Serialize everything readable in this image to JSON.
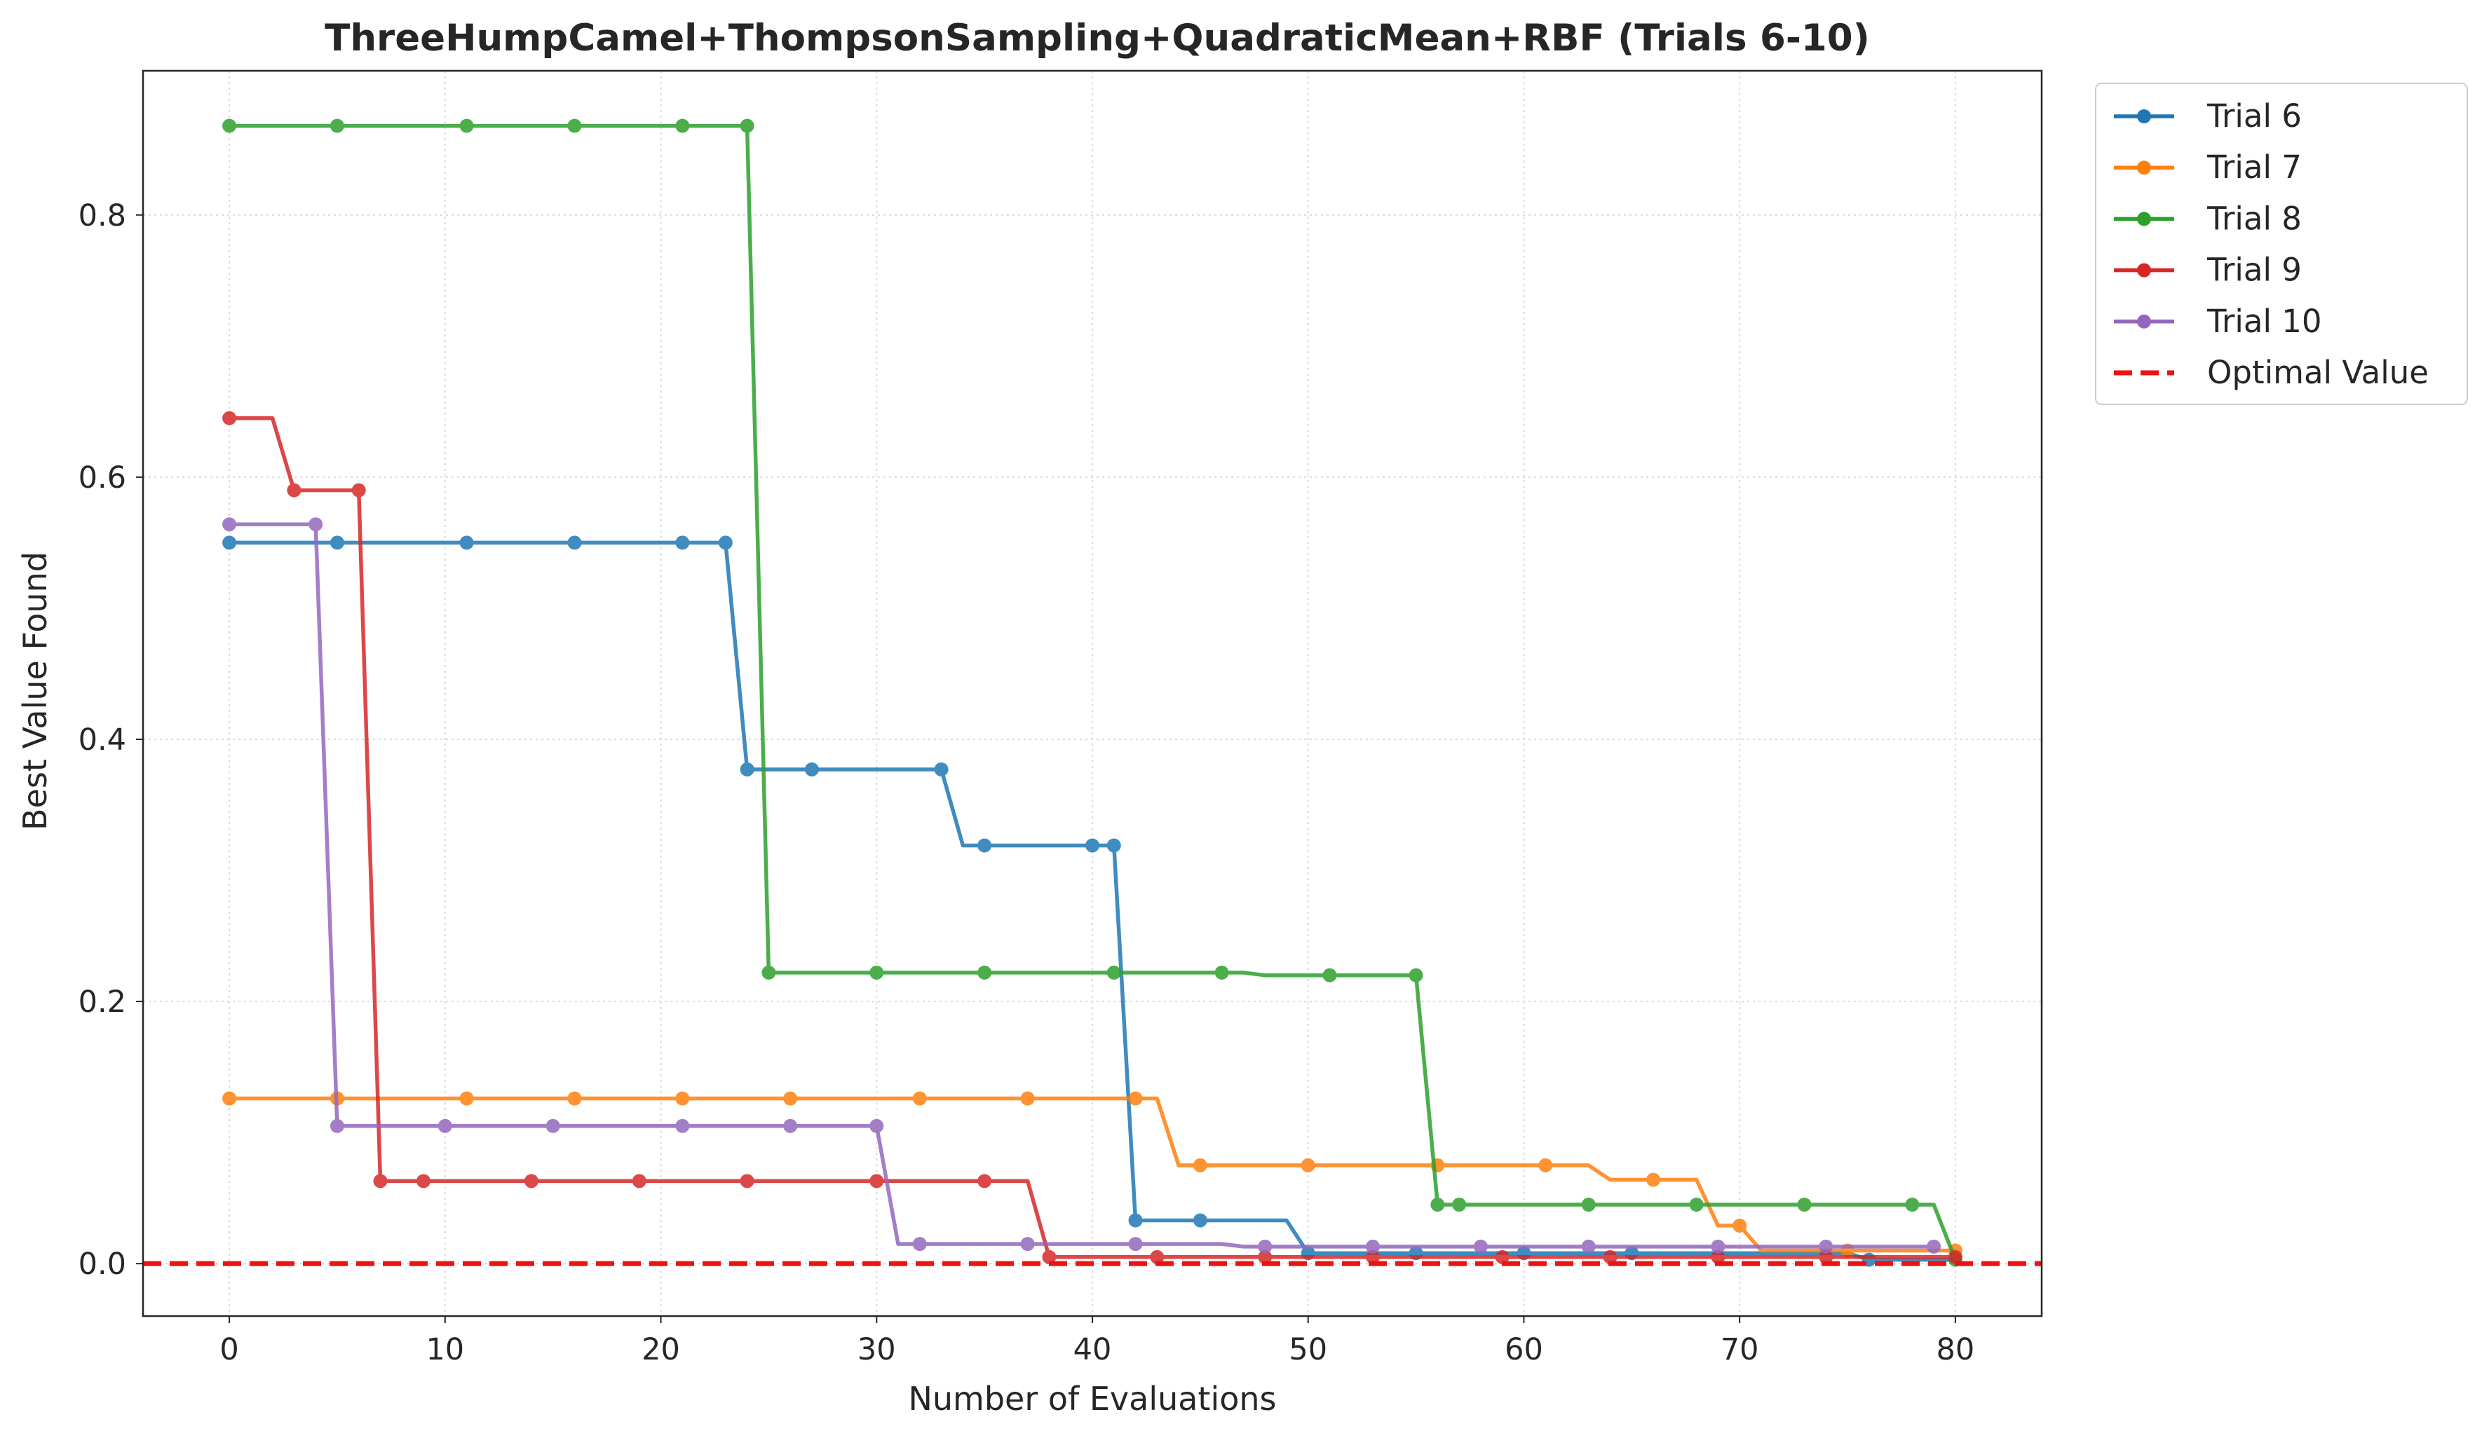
{
  "chart_data": {
    "type": "line",
    "title": "ThreeHumpCamel+ThompsonSampling+QuadraticMean+RBF (Trials 6-10)",
    "xlabel": "Number of Evaluations",
    "ylabel": "Best Value Found",
    "xlim": [
      -4,
      84
    ],
    "ylim": [
      -0.04,
      0.91
    ],
    "xticks": [
      0,
      10,
      20,
      30,
      40,
      50,
      60,
      70,
      80
    ],
    "yticks": [
      0.0,
      0.2,
      0.4,
      0.6,
      0.8
    ],
    "xtick_labels": [
      "0",
      "10",
      "20",
      "30",
      "40",
      "50",
      "60",
      "70",
      "80"
    ],
    "ytick_labels": [
      "0.0",
      "0.2",
      "0.4",
      "0.6",
      "0.8"
    ],
    "grid": true,
    "legend_position": "outside-top-right",
    "series": [
      {
        "name": "Trial 6",
        "color": "#1f77b4",
        "markers": [
          [
            0,
            0.55
          ],
          [
            5,
            0.55
          ],
          [
            11,
            0.55
          ],
          [
            16,
            0.55
          ],
          [
            21,
            0.55
          ],
          [
            23,
            0.55
          ],
          [
            24,
            0.377
          ],
          [
            27,
            0.377
          ],
          [
            33,
            0.377
          ],
          [
            35,
            0.319
          ],
          [
            40,
            0.319
          ],
          [
            41,
            0.319
          ],
          [
            42,
            0.033
          ],
          [
            45,
            0.033
          ],
          [
            50,
            0.008
          ],
          [
            55,
            0.008
          ],
          [
            60,
            0.008
          ],
          [
            65,
            0.008
          ],
          [
            76,
            0.003
          ]
        ],
        "line": [
          [
            0,
            0.55
          ],
          [
            23,
            0.55
          ],
          [
            24,
            0.377
          ],
          [
            33,
            0.377
          ],
          [
            34,
            0.319
          ],
          [
            41,
            0.319
          ],
          [
            42,
            0.033
          ],
          [
            49,
            0.033
          ],
          [
            50,
            0.008
          ],
          [
            75,
            0.008
          ],
          [
            76,
            0.003
          ],
          [
            80,
            0.003
          ]
        ]
      },
      {
        "name": "Trial 7",
        "color": "#ff7f0e",
        "markers": [
          [
            0,
            0.126
          ],
          [
            5,
            0.126
          ],
          [
            11,
            0.126
          ],
          [
            16,
            0.126
          ],
          [
            21,
            0.126
          ],
          [
            26,
            0.126
          ],
          [
            32,
            0.126
          ],
          [
            37,
            0.126
          ],
          [
            42,
            0.126
          ],
          [
            45,
            0.075
          ],
          [
            50,
            0.075
          ],
          [
            56,
            0.075
          ],
          [
            61,
            0.075
          ],
          [
            66,
            0.064
          ],
          [
            70,
            0.029
          ],
          [
            75,
            0.01
          ],
          [
            80,
            0.01
          ]
        ],
        "line": [
          [
            0,
            0.126
          ],
          [
            43,
            0.126
          ],
          [
            44,
            0.075
          ],
          [
            63,
            0.075
          ],
          [
            64,
            0.064
          ],
          [
            68,
            0.064
          ],
          [
            69,
            0.029
          ],
          [
            70,
            0.029
          ],
          [
            71,
            0.01
          ],
          [
            80,
            0.01
          ]
        ]
      },
      {
        "name": "Trial 8",
        "color": "#2ca02c",
        "markers": [
          [
            0,
            0.868
          ],
          [
            5,
            0.868
          ],
          [
            11,
            0.868
          ],
          [
            16,
            0.868
          ],
          [
            21,
            0.868
          ],
          [
            24,
            0.868
          ],
          [
            25,
            0.222
          ],
          [
            30,
            0.222
          ],
          [
            35,
            0.222
          ],
          [
            41,
            0.222
          ],
          [
            46,
            0.222
          ],
          [
            51,
            0.22
          ],
          [
            55,
            0.22
          ],
          [
            56,
            0.045
          ],
          [
            57,
            0.045
          ],
          [
            63,
            0.045
          ],
          [
            68,
            0.045
          ],
          [
            73,
            0.045
          ],
          [
            78,
            0.045
          ],
          [
            80,
            0.003
          ]
        ],
        "line": [
          [
            0,
            0.868
          ],
          [
            24,
            0.868
          ],
          [
            25,
            0.222
          ],
          [
            47,
            0.222
          ],
          [
            48,
            0.22
          ],
          [
            55,
            0.22
          ],
          [
            56,
            0.045
          ],
          [
            79,
            0.045
          ],
          [
            80,
            0.003
          ]
        ]
      },
      {
        "name": "Trial 9",
        "color": "#d62728",
        "markers": [
          [
            0,
            0.645
          ],
          [
            3,
            0.59
          ],
          [
            6,
            0.59
          ],
          [
            7,
            0.063
          ],
          [
            9,
            0.063
          ],
          [
            14,
            0.063
          ],
          [
            19,
            0.063
          ],
          [
            24,
            0.063
          ],
          [
            30,
            0.063
          ],
          [
            35,
            0.063
          ],
          [
            38,
            0.005
          ],
          [
            43,
            0.005
          ],
          [
            48,
            0.005
          ],
          [
            53,
            0.005
          ],
          [
            59,
            0.005
          ],
          [
            64,
            0.005
          ],
          [
            69,
            0.005
          ],
          [
            74,
            0.005
          ],
          [
            80,
            0.005
          ]
        ],
        "line": [
          [
            0,
            0.645
          ],
          [
            2,
            0.645
          ],
          [
            3,
            0.59
          ],
          [
            6,
            0.59
          ],
          [
            7,
            0.063
          ],
          [
            37,
            0.063
          ],
          [
            38,
            0.005
          ],
          [
            80,
            0.005
          ]
        ]
      },
      {
        "name": "Trial 10",
        "color": "#9467bd",
        "markers": [
          [
            0,
            0.564
          ],
          [
            4,
            0.564
          ],
          [
            5,
            0.105
          ],
          [
            10,
            0.105
          ],
          [
            15,
            0.105
          ],
          [
            21,
            0.105
          ],
          [
            26,
            0.105
          ],
          [
            30,
            0.105
          ],
          [
            32,
            0.015
          ],
          [
            37,
            0.015
          ],
          [
            42,
            0.015
          ],
          [
            48,
            0.013
          ],
          [
            53,
            0.013
          ],
          [
            58,
            0.013
          ],
          [
            63,
            0.013
          ],
          [
            69,
            0.013
          ],
          [
            74,
            0.013
          ],
          [
            79,
            0.013
          ]
        ],
        "line": [
          [
            0,
            0.564
          ],
          [
            4,
            0.564
          ],
          [
            5,
            0.105
          ],
          [
            30,
            0.105
          ],
          [
            31,
            0.015
          ],
          [
            46,
            0.015
          ],
          [
            47,
            0.013
          ],
          [
            79,
            0.013
          ]
        ]
      }
    ],
    "reference_lines": [
      {
        "name": "Optimal Value",
        "y": 0.0,
        "color": "#ee1111",
        "style": "dashed"
      }
    ]
  }
}
